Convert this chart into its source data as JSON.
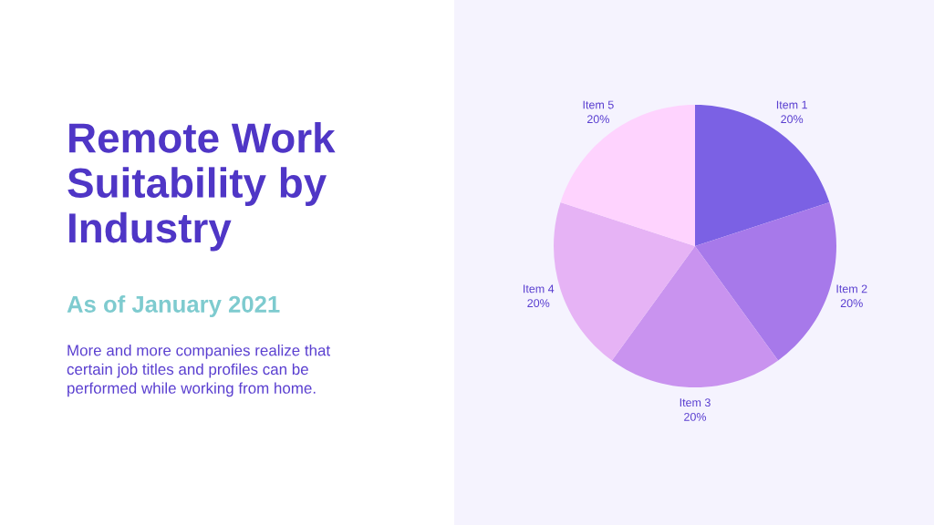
{
  "chart_data": {
    "type": "pie",
    "title": "Remote Work Suitability by Industry",
    "subtitle": "As of January 2021",
    "annotations": [
      "More and more companies realize that certain job titles and profiles can be performed while working from home."
    ],
    "categories": [
      "Item 1",
      "Item 2",
      "Item 3",
      "Item 4",
      "Item 5"
    ],
    "values": [
      20,
      20,
      20,
      20,
      20
    ],
    "value_labels": [
      "20%",
      "20%",
      "20%",
      "20%",
      "20%"
    ],
    "colors": [
      "#7b61e4",
      "#a779ea",
      "#c993ef",
      "#e6b3f5",
      "#fed3fe"
    ]
  }
}
